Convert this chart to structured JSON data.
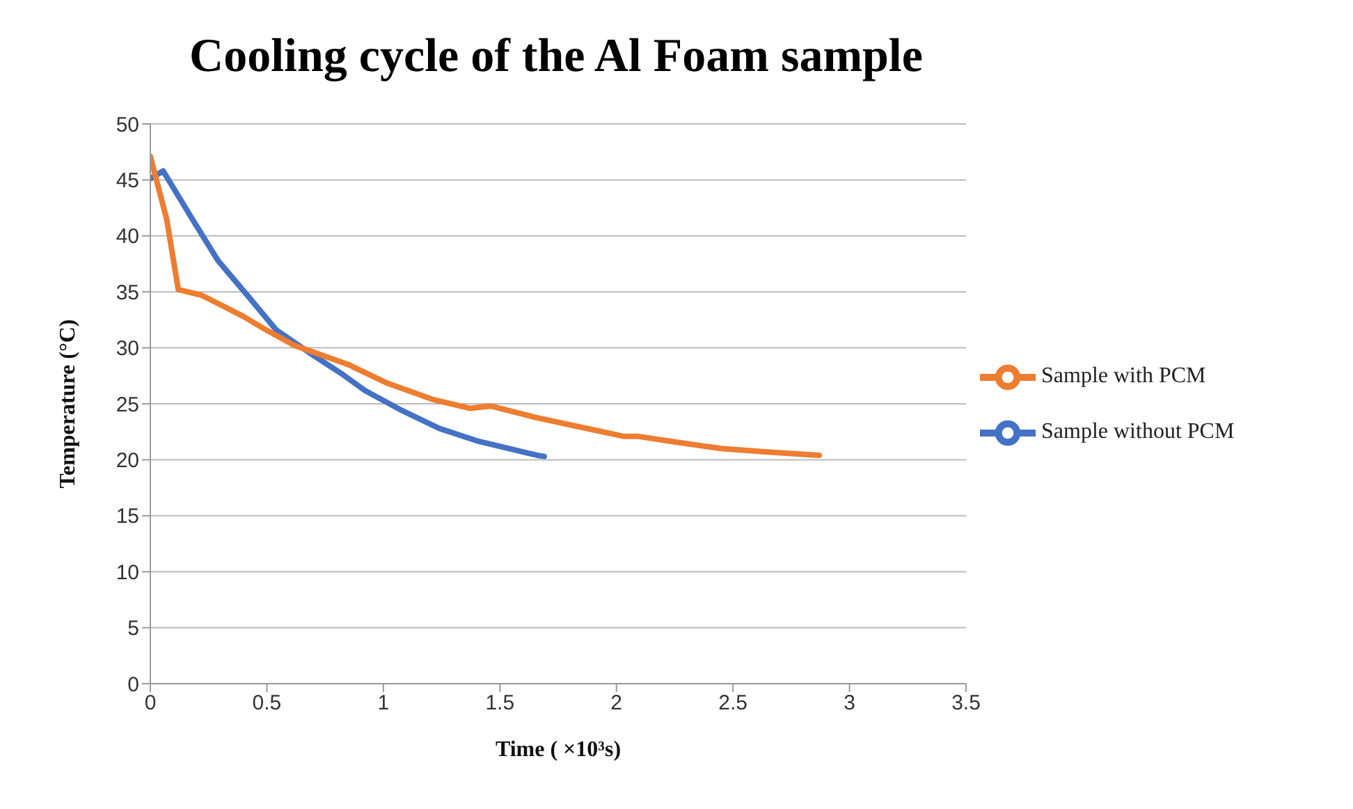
{
  "chart_data": {
    "type": "line",
    "title": "Cooling cycle of the Al Foam sample",
    "xlabel": "Time ( ×10³s)",
    "ylabel": "Temperature (°C)",
    "xlim": [
      0,
      3.5
    ],
    "xticks": [
      0,
      0.5,
      1,
      1.5,
      2,
      2.5,
      3,
      3.5
    ],
    "ylim": [
      0,
      50
    ],
    "yticks": [
      0,
      5,
      10,
      15,
      20,
      25,
      30,
      35,
      40,
      45,
      50
    ],
    "grid": "y",
    "legend": "right",
    "marker": "none",
    "line_style": "solid",
    "series": [
      {
        "name": "Sample without PCM",
        "color": "#4472c4",
        "x": [
          0,
          0.055,
          0.18,
          0.29,
          0.42,
          0.54,
          0.68,
          0.82,
          0.92,
          1.08,
          1.24,
          1.4,
          1.66,
          1.69
        ],
        "values": [
          45.1,
          45.8,
          41.5,
          37.8,
          34.6,
          31.6,
          29.6,
          27.7,
          26.2,
          24.4,
          22.8,
          21.7,
          20.4,
          20.3
        ]
      },
      {
        "name": "Sample with PCM",
        "color": "#ed7d31",
        "x": [
          0,
          0.07,
          0.12,
          0.22,
          0.4,
          0.48,
          0.62,
          0.85,
          1.01,
          1.21,
          1.37,
          1.46,
          1.65,
          1.85,
          2.03,
          2.09,
          2.25,
          2.45,
          2.65,
          2.87
        ],
        "values": [
          47.1,
          41.5,
          35.2,
          34.7,
          32.8,
          31.8,
          30.2,
          28.5,
          26.9,
          25.4,
          24.6,
          24.8,
          23.8,
          22.9,
          22.1,
          22.1,
          21.6,
          21.0,
          20.7,
          20.4
        ]
      }
    ]
  }
}
